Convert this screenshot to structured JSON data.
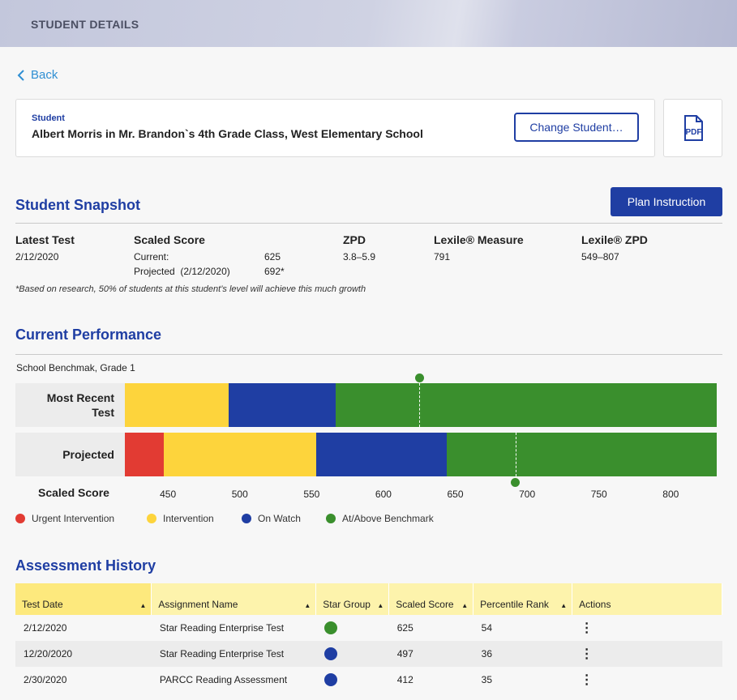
{
  "header": {
    "title": "STUDENT DETAILS"
  },
  "nav": {
    "back_label": "Back"
  },
  "student": {
    "label": "Student",
    "name": "Albert Morris in Mr. Brandon`s 4th Grade Class, West Elementary School",
    "change_button": "Change Student…",
    "pdf_label": "PDF"
  },
  "snapshot": {
    "title": "Student Snapshot",
    "plan_button": "Plan Instruction",
    "latest_test": {
      "heading": "Latest Test",
      "value": "2/12/2020"
    },
    "scaled_score": {
      "heading": "Scaled Score",
      "current_label": "Current:",
      "current_value": "625",
      "projected_label": "Projected  (2/12/2020)",
      "projected_value": "692*"
    },
    "zpd": {
      "heading": "ZPD",
      "value": "3.8–5.9"
    },
    "lexile_measure": {
      "heading": "Lexile® Measure",
      "value": "791"
    },
    "lexile_zpd": {
      "heading": "Lexile® ZPD",
      "value": "549–807"
    },
    "footnote": "*Based on research, 50% of students at this student’s level will achieve this much growth"
  },
  "performance": {
    "title": "Current Performance",
    "benchmark_label": "School Benchmak, Grade 1",
    "row_most_recent_line1": "Most Recent",
    "row_most_recent_line2": "Test",
    "row_projected": "Projected",
    "scaled_score_label": "Scaled Score",
    "axis_min": 420,
    "axis_max": 832,
    "ticks": [
      "450",
      "500",
      "550",
      "600",
      "650",
      "700",
      "750",
      "800"
    ],
    "most_recent_segments": [
      {
        "category": "Intervention",
        "from": 420,
        "to": 492,
        "color": "#fdd43c"
      },
      {
        "category": "On Watch",
        "from": 492,
        "to": 567,
        "color": "#1f3ea3"
      },
      {
        "category": "At/Above Benchmark",
        "from": 567,
        "to": 832,
        "color": "#3a8f2d"
      }
    ],
    "projected_segments": [
      {
        "category": "Urgent Intervention",
        "from": 420,
        "to": 447,
        "color": "#e23b33"
      },
      {
        "category": "Intervention",
        "from": 447,
        "to": 553,
        "color": "#fdd43c"
      },
      {
        "category": "On Watch",
        "from": 553,
        "to": 644,
        "color": "#1f3ea3"
      },
      {
        "category": "At/Above Benchmark",
        "from": 644,
        "to": 832,
        "color": "#3a8f2d"
      }
    ],
    "current_score": 625,
    "projected_score": 692,
    "legend": [
      {
        "label": "Urgent Intervention",
        "color": "#e23b33"
      },
      {
        "label": "Intervention",
        "color": "#fdd43c"
      },
      {
        "label": "On Watch",
        "color": "#1f3ea3"
      },
      {
        "label": "At/Above Benchmark",
        "color": "#3a8f2d"
      }
    ]
  },
  "history": {
    "title": "Assessment History",
    "columns": [
      "Test Date",
      "Assignment Name",
      "Star Group",
      "Scaled Score",
      "Percentile Rank",
      "Actions"
    ],
    "rows": [
      {
        "date": "2/12/2020",
        "name": "Star Reading Enterprise Test",
        "star_group_color": "#3a8f2d",
        "score": "625",
        "percentile": "54"
      },
      {
        "date": "12/20/2020",
        "name": "Star Reading Enterprise Test",
        "star_group_color": "#1f3ea3",
        "score": "497",
        "percentile": "36"
      },
      {
        "date": "2/30/2020",
        "name": "PARCC Reading Assessment",
        "star_group_color": "#1f3ea3",
        "score": "412",
        "percentile": "35"
      }
    ]
  }
}
